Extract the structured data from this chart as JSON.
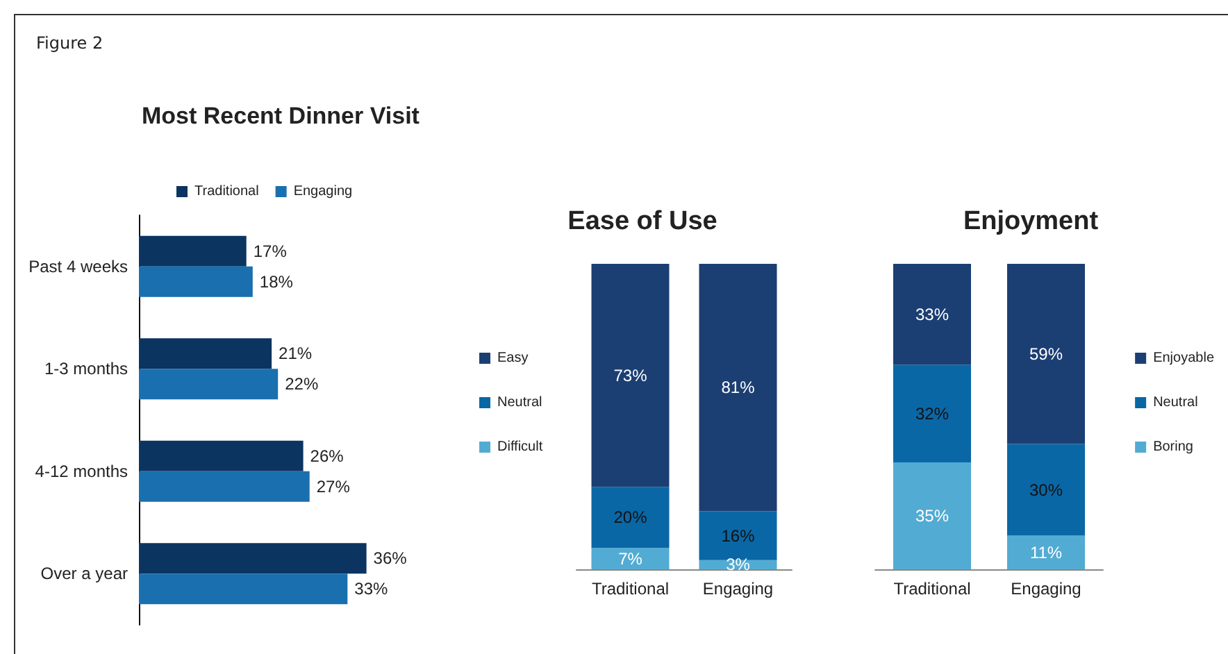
{
  "chart_data": [
    {
      "type": "bar",
      "orientation": "horizontal",
      "title": "Most Recent Dinner Visit",
      "annotations": [
        "Figure 2"
      ],
      "legend": "top left",
      "categories": [
        "Past 4 weeks",
        "1-3 months",
        "4-12 months",
        "Over a year"
      ],
      "series": [
        {
          "name": "Traditional",
          "color": "#0b3460",
          "values": [
            17,
            21,
            26,
            36
          ],
          "value_labels": [
            "17%",
            "21%",
            "26%",
            "36%"
          ]
        },
        {
          "name": "Engaging",
          "color": "#1a6fae",
          "values": [
            18,
            22,
            27,
            33
          ],
          "value_labels": [
            "18%",
            "22%",
            "27%",
            "33%"
          ]
        }
      ]
    },
    {
      "type": "bar",
      "stacked": true,
      "title": "Ease of Use",
      "legend": "left",
      "categories": [
        "Traditional",
        "Engaging"
      ],
      "series": [
        {
          "name": "Difficult",
          "color": "#52abd3",
          "values": [
            7,
            3
          ],
          "value_labels": [
            "7%",
            "3%"
          ]
        },
        {
          "name": "Neutral",
          "color": "#0a67a5",
          "values": [
            20,
            16
          ],
          "value_labels": [
            "20%",
            "16%"
          ]
        },
        {
          "name": "Easy",
          "color": "#1b3f73",
          "values": [
            73,
            81
          ],
          "value_labels": [
            "73%",
            "81%"
          ]
        }
      ]
    },
    {
      "type": "bar",
      "stacked": true,
      "title": "Enjoyment",
      "legend": "right",
      "categories": [
        "Traditional",
        "Engaging"
      ],
      "series": [
        {
          "name": "Boring",
          "color": "#52abd3",
          "values": [
            35,
            11
          ],
          "value_labels": [
            "35%",
            "11%"
          ]
        },
        {
          "name": "Neutral",
          "color": "#0a67a5",
          "values": [
            32,
            30
          ],
          "value_labels": [
            "32%",
            "30%"
          ]
        },
        {
          "name": "Enjoyable",
          "color": "#1b3f73",
          "values": [
            33,
            59
          ],
          "value_labels": [
            "33%",
            "59%"
          ]
        }
      ]
    }
  ]
}
